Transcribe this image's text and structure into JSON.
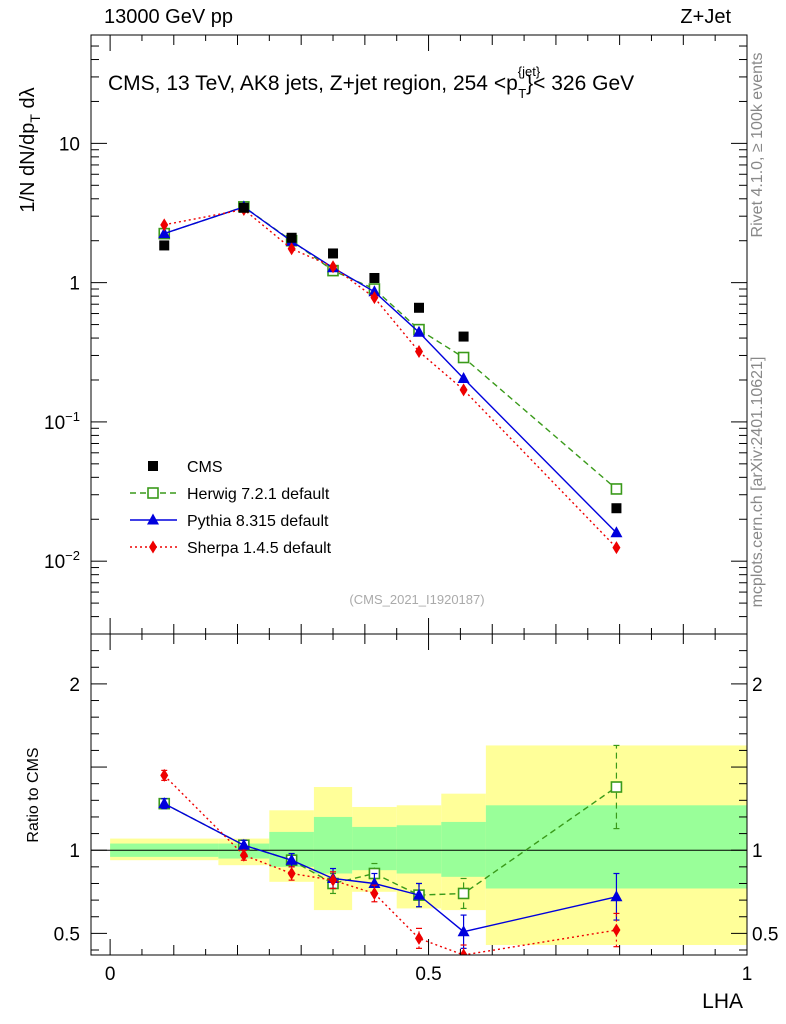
{
  "header": {
    "energy_label": "13000 GeV pp",
    "process_label": "Z+Jet"
  },
  "chart_data": {
    "type": "scatter",
    "title": "CMS, 13 TeV, AK8 jets, Z+jet region, 254 <p",
    "title_sup": "{jet}",
    "title_sub": "T",
    "title_end": "}< 326 GeV",
    "xlabel": "LHA",
    "ylabel_upper": "1/N dN/dp_T dλ",
    "ylabel_ratio": "Ratio to CMS",
    "side_label_top": "Rivet 4.1.0, ≥ 100k events",
    "side_label_bottom": "mcplots.cern.ch [arXiv:2401.10621]",
    "analysis_label": "(CMS_2021_I1920187)",
    "xlim": [
      -0.03,
      1.0
    ],
    "ylim_main": [
      0.003,
      60
    ],
    "ylim_ratio": [
      0.37,
      2.3
    ],
    "xticks": [
      {
        "v": 0,
        "label": "0"
      },
      {
        "v": 0.5,
        "label": "0.5"
      },
      {
        "v": 1,
        "label": "1"
      }
    ],
    "yticks_main": [
      {
        "v": 0.01,
        "base": "10",
        "exp": "−2"
      },
      {
        "v": 0.1,
        "base": "10",
        "exp": "−1"
      },
      {
        "v": 1,
        "base": "1",
        "exp": ""
      },
      {
        "v": 10,
        "base": "10",
        "exp": ""
      }
    ],
    "yticks_ratio": [
      {
        "v": 0.5,
        "label": "0.5"
      },
      {
        "v": 1,
        "label": "1"
      },
      {
        "v": 2,
        "label": "2"
      }
    ],
    "bins": [
      {
        "lo": 0.0,
        "hi": 0.17,
        "inner": [
          0.96,
          1.04
        ],
        "outer": [
          0.94,
          1.07
        ]
      },
      {
        "lo": 0.17,
        "hi": 0.25,
        "inner": [
          0.95,
          1.04
        ],
        "outer": [
          0.91,
          1.07
        ]
      },
      {
        "lo": 0.25,
        "hi": 0.32,
        "inner": [
          0.9,
          1.11
        ],
        "outer": [
          0.81,
          1.24
        ]
      },
      {
        "lo": 0.32,
        "hi": 0.38,
        "inner": [
          0.86,
          1.2
        ],
        "outer": [
          0.64,
          1.38
        ]
      },
      {
        "lo": 0.38,
        "hi": 0.45,
        "inner": [
          0.88,
          1.14
        ],
        "outer": [
          0.75,
          1.26
        ]
      },
      {
        "lo": 0.45,
        "hi": 0.52,
        "inner": [
          0.86,
          1.15
        ],
        "outer": [
          0.65,
          1.27
        ]
      },
      {
        "lo": 0.52,
        "hi": 0.59,
        "inner": [
          0.84,
          1.17
        ],
        "outer": [
          0.64,
          1.34
        ]
      },
      {
        "lo": 0.59,
        "hi": 1.0,
        "inner": [
          0.77,
          1.27
        ],
        "outer": [
          0.43,
          1.63
        ]
      }
    ],
    "x": [
      0.085,
      0.21,
      0.285,
      0.35,
      0.415,
      0.485,
      0.555,
      0.795
    ],
    "data": [
      1.85,
      3.45,
      2.1,
      1.62,
      1.08,
      0.66,
      0.41,
      0.024
    ],
    "series": [
      {
        "name": "Herwig 7.2.1 default",
        "color": "#3a9a1a",
        "dash": "6,4",
        "marker": "open-square",
        "values": [
          2.25,
          3.5,
          2.0,
          1.22,
          0.9,
          0.46,
          0.29,
          0.033
        ],
        "ratio": [
          1.28,
          1.03,
          0.94,
          0.8,
          0.86,
          0.73,
          0.74,
          1.38
        ],
        "ratio_err": [
          0.03,
          0.03,
          0.04,
          0.06,
          0.06,
          0.07,
          0.09,
          0.25
        ]
      },
      {
        "name": "Pythia 8.315 default",
        "color": "#0000dd",
        "dash": "",
        "marker": "triangle",
        "values": [
          2.25,
          3.5,
          1.98,
          1.28,
          0.86,
          0.44,
          0.205,
          0.016
        ],
        "ratio": [
          1.28,
          1.03,
          0.94,
          0.83,
          0.8,
          0.73,
          0.51,
          0.72
        ],
        "ratio_err": [
          0.03,
          0.03,
          0.04,
          0.06,
          0.06,
          0.07,
          0.1,
          0.14
        ]
      },
      {
        "name": "Sherpa 1.4.5 default",
        "color": "#ee0000",
        "dash": "2,3",
        "marker": "diamond",
        "values": [
          2.6,
          3.35,
          1.75,
          1.3,
          0.78,
          0.32,
          0.17,
          0.0125
        ],
        "ratio": [
          1.45,
          0.97,
          0.86,
          0.82,
          0.74,
          0.47,
          0.37,
          0.52
        ],
        "ratio_err": [
          0.03,
          0.03,
          0.04,
          0.05,
          0.05,
          0.06,
          0.06,
          0.1
        ]
      }
    ],
    "legend": [
      {
        "name": "CMS",
        "marker": "filled-square",
        "color": "#000000",
        "dash": ""
      },
      {
        "name": "Herwig 7.2.1 default",
        "marker": "open-square",
        "color": "#3a9a1a",
        "dash": "6,4"
      },
      {
        "name": "Pythia 8.315 default",
        "marker": "triangle",
        "color": "#0000dd",
        "dash": ""
      },
      {
        "name": "Sherpa 1.4.5 default",
        "marker": "diamond",
        "color": "#ee0000",
        "dash": "2,3"
      }
    ],
    "colors": {
      "band_inner": "#99ff99",
      "band_outer": "#ffff99"
    }
  }
}
